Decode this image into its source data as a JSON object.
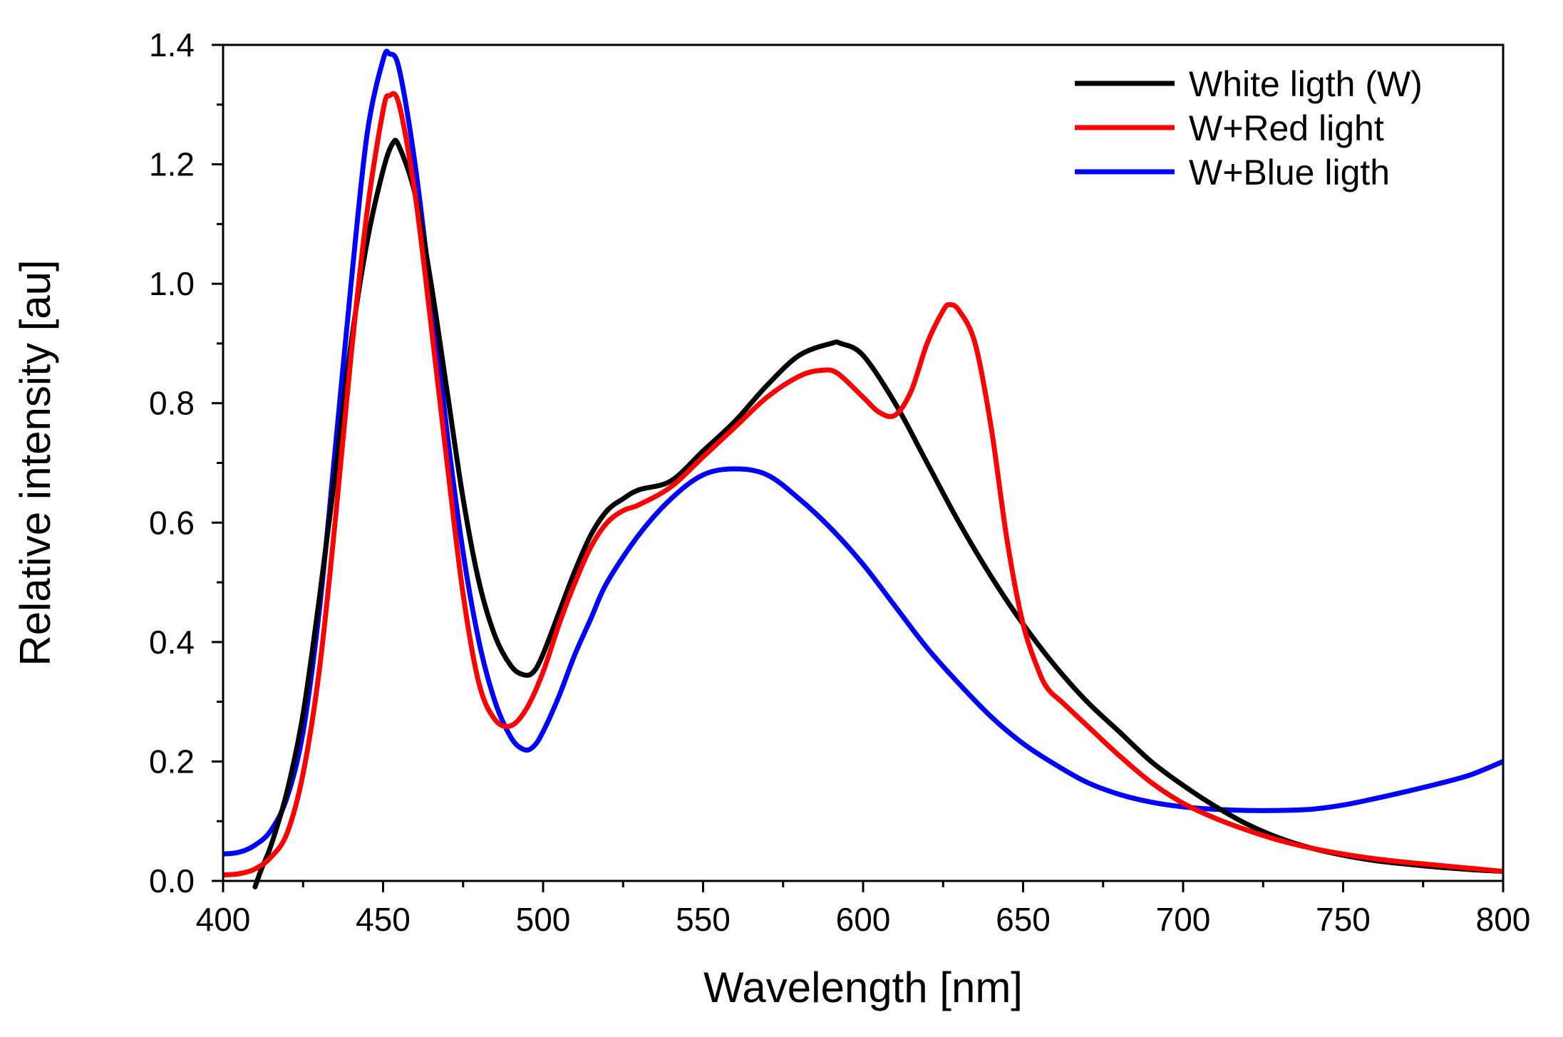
{
  "chart_data": {
    "type": "line",
    "xlabel": "Wavelength [nm]",
    "ylabel": "Relative intensity [au]",
    "xlim": [
      400,
      800
    ],
    "ylim": [
      0,
      1.4
    ],
    "x_ticks": [
      "400",
      "450",
      "500",
      "550",
      "600",
      "650",
      "700",
      "750",
      "800"
    ],
    "y_ticks": [
      "0.0",
      "0.2",
      "0.4",
      "0.6",
      "0.8",
      "1.0",
      "1.2",
      "1.4"
    ],
    "x_tick_values": [
      400,
      450,
      500,
      550,
      600,
      650,
      700,
      750,
      800
    ],
    "y_tick_values": [
      0.0,
      0.2,
      0.4,
      0.6,
      0.8,
      1.0,
      1.2,
      1.4
    ],
    "grid": false,
    "legend_position": "top-right",
    "series": [
      {
        "name": "White ligth (W)",
        "color": "#000000",
        "x": [
          410,
          412,
          415,
          420,
          425,
          430,
          435,
          440,
          445,
          450,
          453,
          455,
          460,
          465,
          470,
          475,
          480,
          485,
          490,
          494,
          497,
          500,
          505,
          510,
          515,
          520,
          525,
          530,
          540,
          550,
          560,
          570,
          580,
          590,
          593,
          600,
          610,
          620,
          630,
          640,
          650,
          660,
          670,
          680,
          690,
          700,
          710,
          720,
          730,
          740,
          750,
          760,
          770,
          780,
          790,
          800
        ],
        "y": [
          -0.01,
          0.02,
          0.06,
          0.15,
          0.28,
          0.47,
          0.68,
          0.9,
          1.07,
          1.19,
          1.235,
          1.23,
          1.15,
          1.0,
          0.82,
          0.64,
          0.5,
          0.41,
          0.36,
          0.345,
          0.35,
          0.38,
          0.45,
          0.52,
          0.58,
          0.62,
          0.64,
          0.655,
          0.67,
          0.72,
          0.77,
          0.83,
          0.88,
          0.9,
          0.9,
          0.88,
          0.8,
          0.7,
          0.6,
          0.51,
          0.43,
          0.36,
          0.3,
          0.25,
          0.2,
          0.16,
          0.125,
          0.095,
          0.072,
          0.055,
          0.043,
          0.034,
          0.028,
          0.023,
          0.019,
          0.016
        ]
      },
      {
        "name": "W+Red light",
        "color": "#ff0000",
        "x": [
          400,
          405,
          410,
          415,
          420,
          425,
          430,
          435,
          440,
          445,
          450,
          452,
          455,
          460,
          465,
          470,
          475,
          480,
          485,
          490,
          495,
          500,
          505,
          510,
          515,
          520,
          525,
          530,
          540,
          550,
          560,
          570,
          580,
          587,
          592,
          600,
          605,
          610,
          615,
          620,
          625,
          627,
          630,
          635,
          640,
          645,
          650,
          655,
          658,
          662,
          670,
          680,
          690,
          700,
          710,
          720,
          730,
          740,
          750,
          760,
          770,
          780,
          790,
          800
        ],
        "y": [
          0.01,
          0.012,
          0.02,
          0.04,
          0.08,
          0.18,
          0.35,
          0.6,
          0.88,
          1.12,
          1.29,
          1.315,
          1.3,
          1.15,
          0.93,
          0.7,
          0.48,
          0.33,
          0.27,
          0.26,
          0.29,
          0.35,
          0.43,
          0.5,
          0.56,
          0.6,
          0.62,
          0.63,
          0.66,
          0.71,
          0.76,
          0.81,
          0.845,
          0.855,
          0.85,
          0.81,
          0.785,
          0.78,
          0.82,
          0.9,
          0.955,
          0.965,
          0.955,
          0.9,
          0.76,
          0.57,
          0.43,
          0.35,
          0.32,
          0.3,
          0.26,
          0.21,
          0.165,
          0.13,
          0.105,
          0.085,
          0.068,
          0.055,
          0.045,
          0.037,
          0.031,
          0.026,
          0.021,
          0.016
        ]
      },
      {
        "name": "W+Blue ligth",
        "color": "#0000ff",
        "x": [
          400,
          405,
          410,
          415,
          420,
          425,
          430,
          435,
          440,
          445,
          450,
          452,
          455,
          460,
          465,
          470,
          475,
          480,
          485,
          490,
          494,
          497,
          500,
          505,
          510,
          515,
          520,
          530,
          540,
          550,
          560,
          570,
          580,
          590,
          600,
          610,
          620,
          630,
          640,
          650,
          660,
          670,
          680,
          690,
          700,
          710,
          720,
          730,
          740,
          750,
          760,
          770,
          780,
          790,
          800
        ],
        "y": [
          0.045,
          0.048,
          0.06,
          0.085,
          0.14,
          0.25,
          0.45,
          0.72,
          1.0,
          1.25,
          1.375,
          1.385,
          1.36,
          1.2,
          0.98,
          0.75,
          0.55,
          0.4,
          0.3,
          0.24,
          0.22,
          0.225,
          0.25,
          0.31,
          0.38,
          0.44,
          0.5,
          0.58,
          0.64,
          0.68,
          0.69,
          0.68,
          0.64,
          0.59,
          0.53,
          0.46,
          0.39,
          0.33,
          0.275,
          0.23,
          0.195,
          0.165,
          0.145,
          0.132,
          0.124,
          0.12,
          0.118,
          0.118,
          0.12,
          0.127,
          0.138,
          0.15,
          0.163,
          0.178,
          0.2
        ]
      }
    ]
  }
}
